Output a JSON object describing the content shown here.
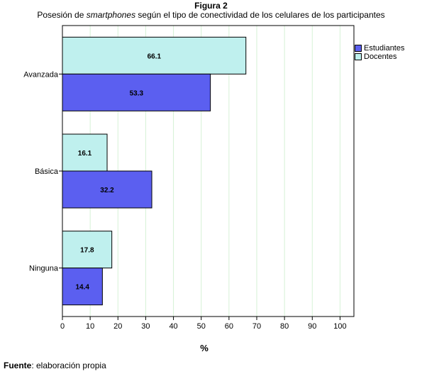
{
  "figure": {
    "label": "Figura 2",
    "caption_pre": "Posesión de ",
    "caption_em": "smartphones",
    "caption_post": " según el tipo de conectividad de los celulares de los participantes"
  },
  "source": {
    "label": "Fuente",
    "text": ": elaboración propia"
  },
  "chart_data": {
    "type": "bar",
    "orientation": "horizontal",
    "categories": [
      "Avanzada",
      "Básica",
      "Ninguna"
    ],
    "series": [
      {
        "name": "Docentes",
        "values": [
          66.1,
          16.1,
          17.8
        ],
        "color": "#bff0ee"
      },
      {
        "name": "Estudiantes",
        "values": [
          53.3,
          32.2,
          14.4
        ],
        "color": "#5b5ff0"
      }
    ],
    "legend_order": [
      "Estudiantes",
      "Docentes"
    ],
    "xlabel": "%",
    "xlim": [
      0,
      105
    ],
    "xticks": [
      0,
      10,
      20,
      30,
      40,
      50,
      60,
      70,
      80,
      90,
      100
    ],
    "grid": true,
    "grid_color": "#d6f2d6",
    "legend_position": "top-right"
  }
}
